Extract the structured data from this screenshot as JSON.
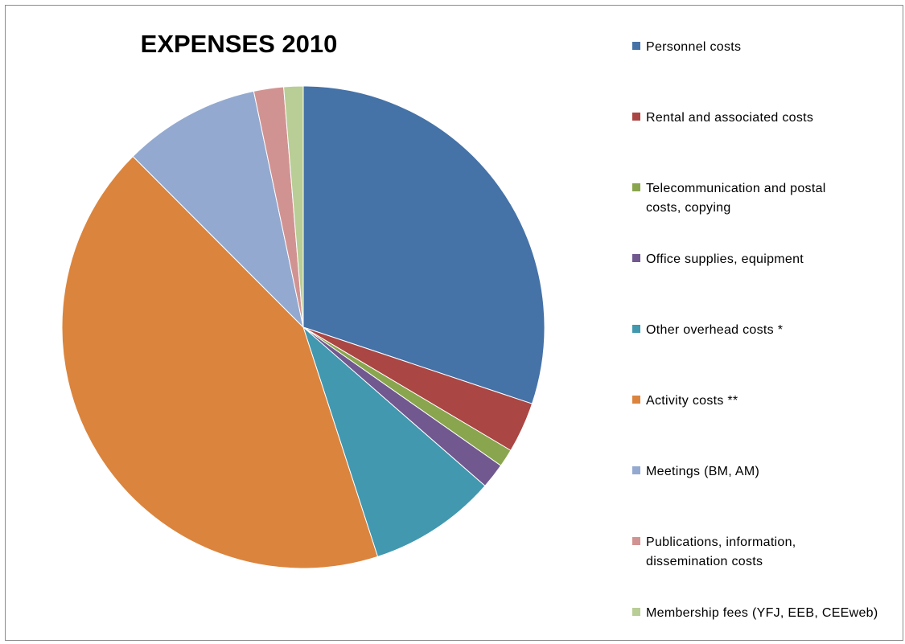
{
  "chart_data": {
    "type": "pie",
    "title": "EXPENSES 2010",
    "legend_position": "right",
    "categories": [
      "Personnel costs",
      "Rental and associated costs",
      "Telecommunication and postal costs, copying",
      "Office supplies, equipment",
      "Other overhead costs *",
      "Activity costs **",
      "Meetings (BM, AM)",
      "Publications, information, dissemination costs",
      "Membership fees (YFJ, EEB, CEEweb)"
    ],
    "values": [
      30.2,
      3.4,
      1.2,
      1.7,
      8.6,
      42.6,
      9.2,
      2.0,
      1.3
    ],
    "colors": [
      "#4572A7",
      "#AA4643",
      "#89A54E",
      "#71588F",
      "#4198AF",
      "#DB843D",
      "#93A9CF",
      "#D19392",
      "#B9CD96"
    ]
  },
  "legend": {
    "items": [
      {
        "label_lines": [
          "Personnel costs"
        ]
      },
      {
        "label_lines": [
          "Rental and associated costs"
        ]
      },
      {
        "label_lines": [
          "Telecommunication and postal",
          "costs, copying"
        ]
      },
      {
        "label_lines": [
          "Office supplies, equipment"
        ]
      },
      {
        "label_lines": [
          "Other overhead costs *"
        ]
      },
      {
        "label_lines": [
          "Activity costs **"
        ]
      },
      {
        "label_lines": [
          "Meetings (BM, AM)"
        ]
      },
      {
        "label_lines": [
          "Publications, information,",
          "dissemination costs"
        ]
      },
      {
        "label_lines": [
          "Membership fees (YFJ, EEB, CEEweb)"
        ]
      }
    ]
  }
}
